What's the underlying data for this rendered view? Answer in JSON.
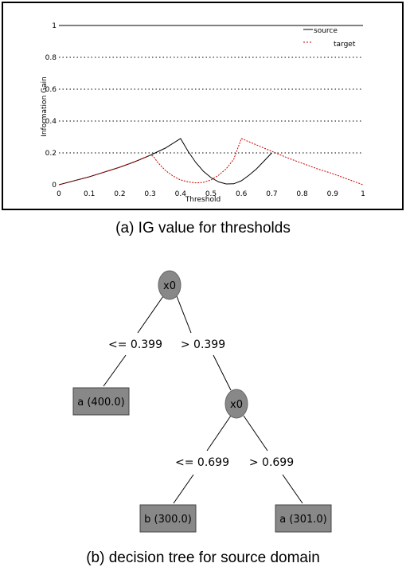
{
  "chart_data": {
    "type": "line",
    "title": "",
    "xlabel": "Threshold",
    "ylabel": "Information Gain",
    "xlim": [
      0,
      1
    ],
    "ylim": [
      0,
      1
    ],
    "x_ticks": [
      "0",
      "0.1",
      "0.2",
      "0.3",
      "0.4",
      "0.5",
      "0.6",
      "0.7",
      "0.8",
      "0.9",
      "1"
    ],
    "y_ticks": [
      "0",
      "0.2",
      "0.4",
      "0.6",
      "0.8",
      "1"
    ],
    "grid": "dotted horizontal",
    "legend": "top-right",
    "series": [
      {
        "name": "source",
        "color": "#000000",
        "x": [
          0.0,
          0.05,
          0.1,
          0.15,
          0.2,
          0.25,
          0.3,
          0.35,
          0.4,
          0.425,
          0.45,
          0.475,
          0.5,
          0.525,
          0.55,
          0.575,
          0.6,
          0.625,
          0.65,
          0.675,
          0.7
        ],
        "y": [
          0.0,
          0.025,
          0.05,
          0.08,
          0.11,
          0.145,
          0.185,
          0.23,
          0.29,
          0.21,
          0.14,
          0.085,
          0.045,
          0.018,
          0.005,
          0.006,
          0.025,
          0.06,
          0.1,
          0.15,
          0.2
        ]
      },
      {
        "name": "target",
        "color": "#cc0000",
        "x": [
          0.0,
          0.05,
          0.1,
          0.15,
          0.2,
          0.25,
          0.3,
          0.31,
          0.325,
          0.35,
          0.375,
          0.4,
          0.425,
          0.45,
          0.475,
          0.5,
          0.525,
          0.55,
          0.575,
          0.6,
          0.65,
          0.7,
          0.75,
          0.8,
          0.85,
          0.9,
          0.95,
          1.0
        ],
        "y": [
          0.0,
          0.025,
          0.05,
          0.08,
          0.11,
          0.145,
          0.185,
          0.18,
          0.14,
          0.09,
          0.055,
          0.03,
          0.018,
          0.012,
          0.015,
          0.03,
          0.06,
          0.1,
          0.16,
          0.29,
          0.25,
          0.21,
          0.17,
          0.135,
          0.1,
          0.07,
          0.035,
          0.0
        ]
      }
    ]
  },
  "captions": {
    "a": "(a) IG value for thresholds",
    "b": "(b) decision tree for source domain"
  },
  "tree": {
    "root_label": "x0",
    "left_edge": "<= 0.399",
    "right_edge": "> 0.399",
    "leaf_a1": "a (400.0)",
    "inner_label": "x0",
    "inner_left_edge": "<= 0.699",
    "inner_right_edge": "> 0.699",
    "leaf_b": "b (300.0)",
    "leaf_a2": "a (301.0)"
  },
  "colors": {
    "node_fill": "#888888",
    "leaf_fill": "#888888",
    "leaf_border": "#444444"
  }
}
